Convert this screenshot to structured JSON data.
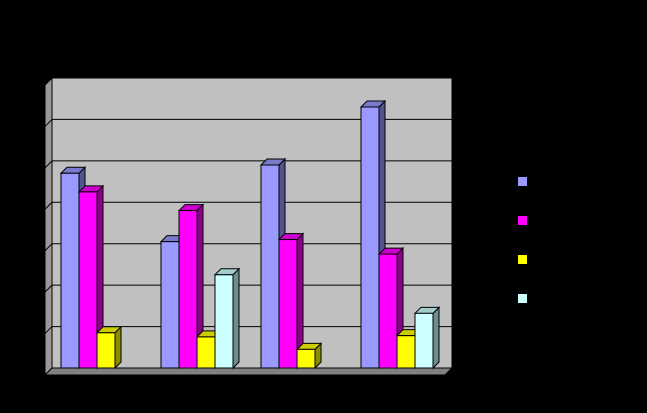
{
  "chart_data": {
    "type": "bar",
    "style": "3d-clustered",
    "title": "",
    "xlabel": "",
    "ylabel": "",
    "categories": [
      "",
      "",
      "",
      ""
    ],
    "ylim": [
      0,
      7
    ],
    "grid": true,
    "legend_position": "right",
    "series": [
      {
        "color": "#9999FF",
        "values": [
          4.7,
          3.05,
          4.9,
          6.3
        ]
      },
      {
        "color": "#FF00FF",
        "values": [
          4.25,
          3.8,
          3.1,
          2.75
        ]
      },
      {
        "color": "#FFFF00",
        "values": [
          0.85,
          0.75,
          0.45,
          0.78
        ]
      },
      {
        "color": "#CCFFFF",
        "values": [
          0,
          2.25,
          0,
          1.32
        ]
      }
    ]
  }
}
